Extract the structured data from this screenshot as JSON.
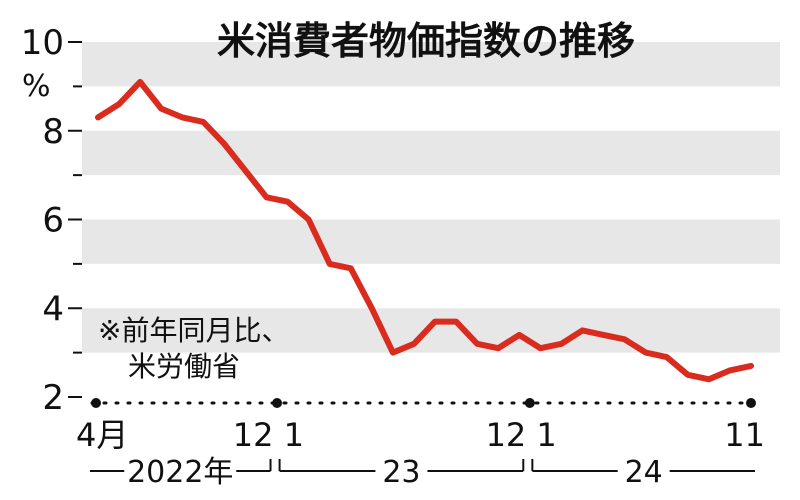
{
  "chart_data": {
    "type": "line",
    "title": "米消費者物価指数の推移",
    "ylabel": "%",
    "ylim": [
      2,
      10
    ],
    "yticks_labeled": [
      "10",
      "8",
      "6",
      "4",
      "2"
    ],
    "yticks_minor": [
      9,
      7,
      5,
      3
    ],
    "grid": "horizontal bands",
    "series": [
      {
        "color": "#d92b1e",
        "x": [
          "2022-04",
          "2022-05",
          "2022-06",
          "2022-07",
          "2022-08",
          "2022-09",
          "2022-10",
          "2022-11",
          "2022-12",
          "2023-01",
          "2023-02",
          "2023-03",
          "2023-04",
          "2023-05",
          "2023-06",
          "2023-07",
          "2023-08",
          "2023-09",
          "2023-10",
          "2023-11",
          "2023-12",
          "2024-01",
          "2024-02",
          "2024-03",
          "2024-04",
          "2024-05",
          "2024-06",
          "2024-07",
          "2024-08",
          "2024-09",
          "2024-10",
          "2024-11"
        ],
        "values": [
          8.3,
          8.6,
          9.1,
          8.5,
          8.3,
          8.2,
          7.7,
          7.1,
          6.5,
          6.4,
          6.0,
          5.0,
          4.9,
          4.0,
          3.0,
          3.2,
          3.7,
          3.7,
          3.2,
          3.1,
          3.4,
          3.1,
          3.2,
          3.5,
          3.4,
          3.3,
          3.0,
          2.9,
          2.5,
          2.4,
          2.6,
          2.7
        ]
      }
    ],
    "x_month_labels": [
      {
        "label": "4月",
        "month": "2022-04"
      },
      {
        "label": "12",
        "month": "2022-12"
      },
      {
        "label": "1",
        "month": "2023-01"
      },
      {
        "label": "12",
        "month": "2023-12"
      },
      {
        "label": "1",
        "month": "2024-01"
      },
      {
        "label": "11",
        "month": "2024-11"
      }
    ],
    "x_year_groups": [
      {
        "label": "2022年",
        "start": "2022-04",
        "end": "2022-12"
      },
      {
        "label": "23",
        "start": "2023-01",
        "end": "2023-12"
      },
      {
        "label": "24",
        "start": "2024-01",
        "end": "2024-11"
      }
    ],
    "note_lines": [
      "※前年同月比、",
      "米労働省"
    ]
  },
  "colors": {
    "line": "#d92b1e",
    "band": "#e7e7e7",
    "text": "#111111"
  }
}
